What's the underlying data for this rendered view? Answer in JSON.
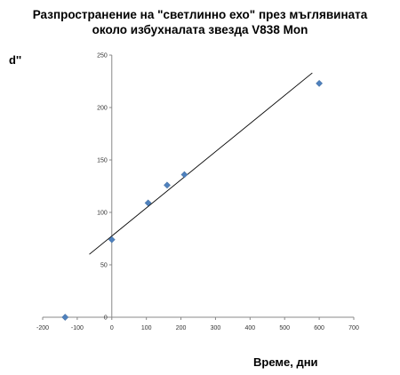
{
  "chart_data": {
    "type": "scatter",
    "title_line1": "Разпространение на \"светлинно ехо\" през мъглявината",
    "title_line2": "около избухналата звезда V838 Mon",
    "xlabel": "Време, дни",
    "ylabel": "d''",
    "xlim": [
      -200,
      700
    ],
    "ylim": [
      0,
      250
    ],
    "x_ticks": [
      -200,
      -100,
      0,
      100,
      200,
      300,
      400,
      500,
      600,
      700
    ],
    "y_ticks": [
      0,
      50,
      100,
      150,
      200,
      250
    ],
    "grid": false,
    "marker_color": "#4f81bd",
    "series": [
      {
        "x": [
          -135,
          0,
          105,
          160,
          210,
          600
        ],
        "y": [
          0,
          74,
          109,
          126,
          136,
          223
        ]
      }
    ],
    "trendline": {
      "x": [
        -65,
        580
      ],
      "y": [
        60,
        233
      ]
    }
  }
}
